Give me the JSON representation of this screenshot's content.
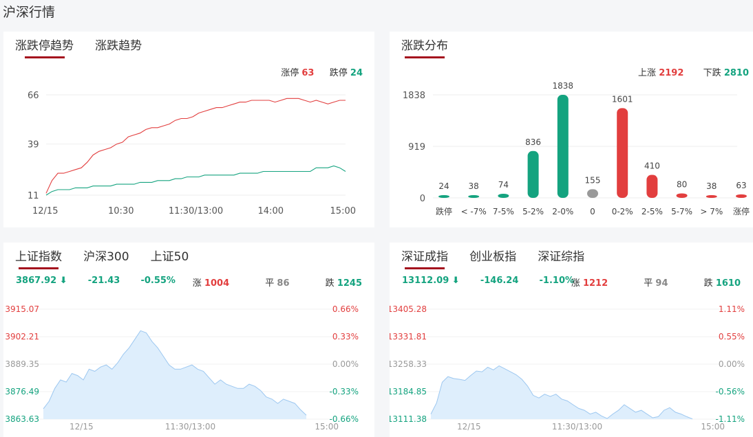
{
  "page_title": "沪深行情",
  "limit_card": {
    "tabs": [
      "涨跌停趋势",
      "涨跌趋势"
    ],
    "legend": {
      "up_label": "涨停",
      "up_value": "63",
      "down_label": "跌停",
      "down_value": "24"
    },
    "colors": {
      "up": "#e23e3e",
      "down": "#14a37f"
    },
    "chart_data": {
      "type": "line",
      "x_ticks": [
        "12/15",
        "10:30",
        "11:30/13:00",
        "14:00",
        "15:00"
      ],
      "y_ticks": [
        "66",
        "39",
        "11"
      ],
      "ylim": [
        11,
        66
      ],
      "series": [
        {
          "values": [
            12,
            19,
            23,
            23,
            24,
            25,
            26,
            29,
            33,
            35,
            36,
            37,
            39,
            40,
            43,
            44,
            45,
            47,
            48,
            48,
            49,
            50,
            52,
            53,
            53,
            54,
            56,
            57,
            58,
            59,
            59,
            60,
            61,
            62,
            62,
            63,
            63,
            63,
            63,
            62,
            63,
            64,
            64,
            64,
            63,
            62,
            63,
            62,
            61,
            62,
            63,
            63
          ]
        },
        {
          "values": [
            11,
            13,
            14,
            14,
            14,
            15,
            15,
            15,
            16,
            16,
            16,
            16,
            17,
            17,
            17,
            17,
            18,
            18,
            18,
            19,
            19,
            19,
            20,
            20,
            21,
            21,
            21,
            22,
            22,
            22,
            22,
            22,
            22,
            23,
            23,
            23,
            23,
            24,
            24,
            24,
            24,
            24,
            24,
            24,
            24,
            24,
            26,
            26,
            26,
            27,
            26,
            24
          ]
        }
      ]
    }
  },
  "dist_card": {
    "tabs": [
      "涨跌分布"
    ],
    "legend": {
      "up_label": "上涨",
      "up_value": "2192",
      "down_label": "下跌",
      "down_value": "2810"
    },
    "chart_data": {
      "type": "bar",
      "categories": [
        "跌停",
        "< -7%",
        "7-5%",
        "5-2%",
        "2-0%",
        "0",
        "0-2%",
        "2-5%",
        "5-7%",
        "> 7%",
        "涨停"
      ],
      "values": [
        24,
        38,
        74,
        836,
        1838,
        155,
        1601,
        410,
        80,
        38,
        63
      ],
      "colors": [
        "#14a37f",
        "#14a37f",
        "#14a37f",
        "#14a37f",
        "#14a37f",
        "#999999",
        "#e23e3e",
        "#e23e3e",
        "#e23e3e",
        "#e23e3e",
        "#e23e3e"
      ],
      "y_ticks": [
        "1838",
        "919",
        "0"
      ],
      "ylim": [
        0,
        1838
      ]
    }
  },
  "sh_card": {
    "tabs": [
      "上证指数",
      "沪深300",
      "上证50"
    ],
    "stats": {
      "price": "3867.92 ⬇",
      "change": "-21.43",
      "pct": "-0.55%",
      "up_label": "涨",
      "up": "1004",
      "flat_label": "平",
      "flat": "86",
      "down_label": "跌",
      "down": "1245"
    },
    "chart_data": {
      "type": "area",
      "y_ticks_left": [
        "3915.07",
        "3902.21",
        "3889.35",
        "3876.49",
        "3863.63"
      ],
      "y_ticks_right": [
        "0.66%",
        "0.33%",
        "0.00%",
        "-0.33%",
        "-0.66%"
      ],
      "x_ticks": [
        "12/15",
        "11:30/13:00",
        "15:00"
      ],
      "ylim": [
        3863.63,
        3915.07
      ],
      "values": [
        3868.5,
        3872,
        3878,
        3882,
        3881,
        3885,
        3884,
        3882,
        3887,
        3886,
        3888,
        3889,
        3887,
        3890,
        3894,
        3897,
        3901,
        3905,
        3904,
        3900,
        3897,
        3893,
        3889,
        3887,
        3887,
        3888,
        3889,
        3887,
        3886,
        3883,
        3880,
        3882,
        3880,
        3879,
        3878,
        3878,
        3880,
        3879,
        3877,
        3874,
        3873,
        3871,
        3873,
        3872,
        3871,
        3868,
        3865.5
      ]
    }
  },
  "sz_card": {
    "tabs": [
      "深证成指",
      "创业板指",
      "深证综指"
    ],
    "stats": {
      "price": "13112.09 ⬇",
      "change": "-146.24",
      "pct": "-1.10%",
      "up_label": "涨",
      "up": "1212",
      "flat_label": "平",
      "flat": "94",
      "down_label": "跌",
      "down": "1610"
    },
    "chart_data": {
      "type": "area",
      "y_ticks_left": [
        "13405.28",
        "13331.81",
        "13258.33",
        "13184.85",
        "13111.38"
      ],
      "y_ticks_right": [
        "1.11%",
        "0.55%",
        "0.00%",
        "-0.56%",
        "-1.11%"
      ],
      "x_ticks": [
        "12/15",
        "11:30/13:00",
        "15:00"
      ],
      "ylim": [
        13111.38,
        13405.28
      ],
      "values": [
        13125,
        13155,
        13210,
        13225,
        13220,
        13218,
        13215,
        13228,
        13240,
        13238,
        13250,
        13243,
        13254,
        13246,
        13238,
        13230,
        13218,
        13200,
        13175,
        13168,
        13178,
        13172,
        13178,
        13165,
        13160,
        13150,
        13140,
        13135,
        13125,
        13130,
        13120,
        13113,
        13125,
        13135,
        13150,
        13140,
        13130,
        13135,
        13125,
        13115,
        13118,
        13135,
        13142,
        13130,
        13125,
        13118,
        13112
      ]
    }
  }
}
